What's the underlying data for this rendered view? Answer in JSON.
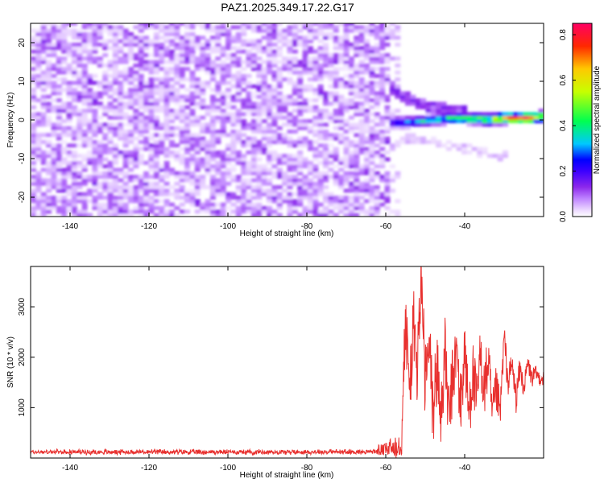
{
  "title": "PAZ1.2025.349.17.22.G17",
  "chart_data": [
    {
      "type": "heatmap",
      "xlabel": "Height of straight line (km)",
      "ylabel": "Frequency (Hz)",
      "xlim": [
        -150,
        -20
      ],
      "ylim": [
        -25,
        25
      ],
      "xticks": [
        -140,
        -120,
        -100,
        -80,
        -60,
        -40
      ],
      "yticks": [
        -20,
        -10,
        0,
        10,
        20
      ],
      "colorbar": {
        "label": "Normalized spectral amplitude",
        "range": [
          0.0,
          0.85
        ],
        "ticks": [
          "0.0",
          "0.2",
          "0.4",
          "0.6",
          "0.8"
        ],
        "tick_values": [
          0.0,
          0.2,
          0.4,
          0.6,
          0.8
        ],
        "colors": [
          "#ffffff",
          "#e6c8ff",
          "#9a28ee",
          "#4a00ff",
          "#0000ff",
          "#00e8ff",
          "#00ff40",
          "#ffff00",
          "#ff3c00",
          "#ff0060"
        ]
      },
      "description_of_data": {
        "noise_region_x": [
          -150,
          -60
        ],
        "noise_amplitude_range": [
          0.0,
          0.15
        ],
        "signal_ridge": [
          {
            "x": -60,
            "freq": -1.0,
            "amp": 0.25
          },
          {
            "x": -55,
            "freq": -1.0,
            "amp": 0.32
          },
          {
            "x": -50,
            "freq": -0.5,
            "amp": 0.38
          },
          {
            "x": -45,
            "freq": 0.0,
            "amp": 0.42
          },
          {
            "x": -40,
            "freq": 0.0,
            "amp": 0.48
          },
          {
            "x": -35,
            "freq": -0.3,
            "amp": 0.55
          },
          {
            "x": -30,
            "freq": 0.0,
            "amp": 0.72
          },
          {
            "x": -25,
            "freq": 0.0,
            "amp": 0.85
          },
          {
            "x": -21,
            "freq": 0.5,
            "amp": 0.62
          }
        ],
        "upper_branch": [
          {
            "x": -63,
            "freq": 12
          },
          {
            "x": -57,
            "freq": 6
          },
          {
            "x": -50,
            "freq": 3
          },
          {
            "x": -40,
            "freq": 1.5
          }
        ],
        "lower_branch": [
          {
            "x": -57,
            "freq": -5
          },
          {
            "x": -50,
            "freq": -6
          },
          {
            "x": -40,
            "freq": -8
          },
          {
            "x": -30,
            "freq": -10
          }
        ]
      }
    },
    {
      "type": "line",
      "xlabel": "Height of straight line (km)",
      "ylabel": "SNR (10 * v/v)",
      "xlim": [
        -150,
        -20
      ],
      "ylim": [
        0,
        3800
      ],
      "xticks": [
        -140,
        -120,
        -100,
        -80,
        -60,
        -40
      ],
      "yticks": [
        1000,
        2000,
        3000
      ],
      "color": "#e8302e",
      "series": [
        {
          "name": "SNR",
          "x": [
            -150,
            -140,
            -120,
            -100,
            -80,
            -65,
            -60,
            -58,
            -56,
            -55,
            -54,
            -53,
            -52,
            -51,
            -50,
            -49,
            -48,
            -47,
            -46,
            -45,
            -44,
            -43,
            -42,
            -41,
            -40,
            -39,
            -38,
            -37,
            -36,
            -35,
            -34,
            -33,
            -32,
            -31,
            -30,
            -29,
            -28,
            -27,
            -26,
            -25,
            -24,
            -23,
            -22,
            -21,
            -20
          ],
          "baseline": [
            120,
            130,
            130,
            130,
            130,
            140,
            180,
            250,
            400,
            2850,
            1400,
            2700,
            1800,
            3800,
            1500,
            2300,
            1000,
            1900,
            900,
            2200,
            800,
            1700,
            2200,
            1000,
            2300,
            900,
            1800,
            1100,
            2100,
            1400,
            2000,
            800,
            1400,
            900,
            2450,
            1500,
            1900,
            1200,
            1800,
            1400,
            1900,
            1600,
            1700,
            1600,
            1600
          ],
          "noise": [
            80,
            80,
            80,
            80,
            80,
            90,
            120,
            250,
            400,
            700,
            700,
            800,
            700,
            800,
            900,
            800,
            800,
            800,
            800,
            700,
            700,
            700,
            700,
            700,
            700,
            700,
            700,
            700,
            600,
            600,
            600,
            500,
            500,
            400,
            300,
            300,
            300,
            300,
            250,
            200,
            200,
            200,
            150,
            150,
            150
          ]
        }
      ]
    }
  ]
}
